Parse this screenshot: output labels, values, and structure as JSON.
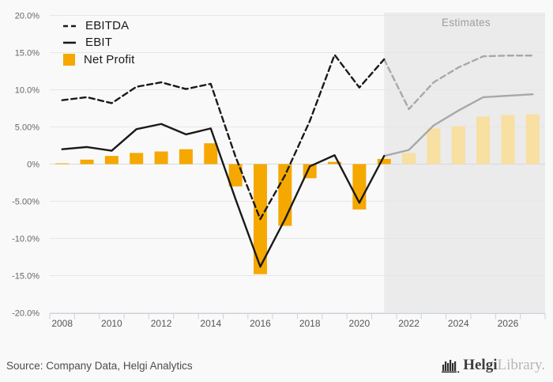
{
  "chart_data": {
    "type": "bar",
    "subtype": "combo-bar-line",
    "title": "",
    "estimates_label": "Estimates",
    "estimates_start_year": 2021,
    "x_start_year": 2008,
    "x_end_year": 2027,
    "y_axis": {
      "min": -20,
      "max": 20,
      "step": 5,
      "tick_labels": [
        "20.0%",
        "15.0%",
        "10.0%",
        "5.00%",
        "0%",
        "-5.00%",
        "-10.0%",
        "-15.0%",
        "-20.0%"
      ]
    },
    "x_axis": {
      "tick_labels": [
        "2008",
        "2010",
        "2012",
        "2014",
        "2016",
        "2018",
        "2020",
        "2022",
        "2024",
        "2026"
      ]
    },
    "series": [
      {
        "name": "EBITDA",
        "type": "line",
        "dash": true,
        "actual": {
          "start_year": 2008,
          "values": [
            8.6,
            9.0,
            8.2,
            10.4,
            11.0,
            10.1,
            10.8,
            1.0,
            -7.4,
            -1.5,
            5.8,
            14.7,
            10.3,
            14.1
          ]
        },
        "estimate": {
          "start_year": 2021,
          "values": [
            14.1,
            7.4,
            11.0,
            13.0,
            14.5,
            14.6,
            14.6
          ]
        }
      },
      {
        "name": "EBIT",
        "type": "line",
        "dash": false,
        "actual": {
          "start_year": 2008,
          "values": [
            2.0,
            2.3,
            1.8,
            4.7,
            5.4,
            4.0,
            4.8,
            -4.7,
            -13.8,
            -7.4,
            -0.3,
            1.2,
            -5.2,
            1.1
          ]
        },
        "estimate": {
          "start_year": 2021,
          "values": [
            1.1,
            1.9,
            5.2,
            7.2,
            9.0,
            9.2,
            9.4
          ]
        }
      },
      {
        "name": "Net Profit",
        "type": "bar",
        "actual": {
          "start_year": 2008,
          "values": [
            0.1,
            0.6,
            1.1,
            1.5,
            1.7,
            2.0,
            2.8,
            -3.0,
            -14.8,
            -8.3,
            -1.9,
            0.3,
            -6.1,
            0.7
          ]
        },
        "estimate": {
          "start_year": 2022,
          "values": [
            1.5,
            4.8,
            5.1,
            6.4,
            6.6,
            6.7
          ]
        }
      }
    ],
    "colors": {
      "bar": "#F5A800",
      "bar_estimate": "#F8DFA2",
      "line": "#1a1a1a",
      "line_estimate": "#a8a8a8",
      "estimates_bg": "#ebebeb",
      "grid": "#e6e6e6",
      "zero_grid": "#d8d8d8",
      "axis": "#c9d2e0",
      "y_tick_text": "#666666",
      "x_tick_text": "#555555"
    }
  },
  "legend": {
    "items": [
      {
        "label": "EBITDA"
      },
      {
        "label": "EBIT"
      },
      {
        "label": "Net Profit"
      }
    ]
  },
  "footer": {
    "source": "Source: Company Data, Helgi Analytics",
    "logo_primary": "Helgi",
    "logo_secondary": "Library."
  }
}
